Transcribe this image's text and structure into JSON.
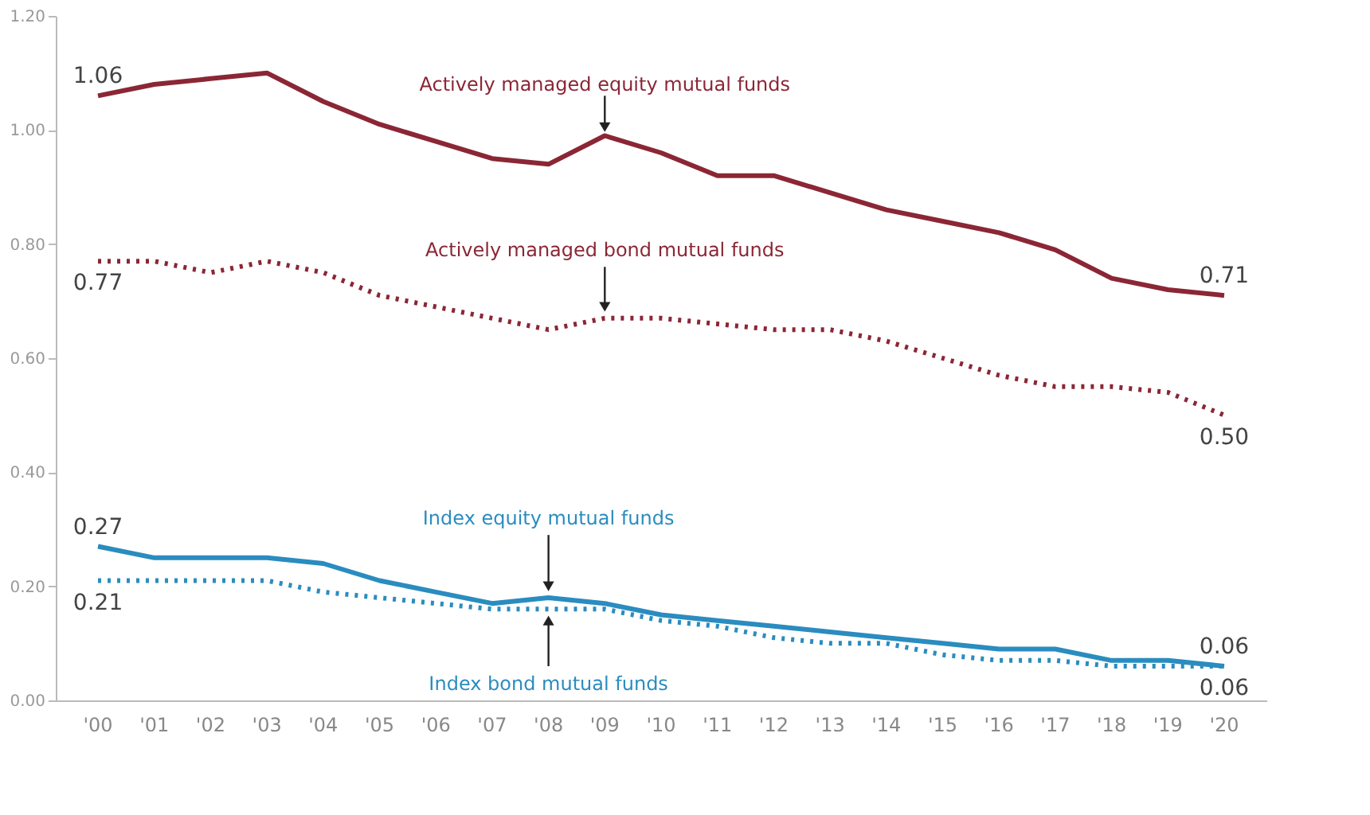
{
  "chart_data": {
    "type": "line",
    "categories": [
      "'00",
      "'01",
      "'02",
      "'03",
      "'04",
      "'05",
      "'06",
      "'07",
      "'08",
      "'09",
      "'10",
      "'11",
      "'12",
      "'13",
      "'14",
      "'15",
      "'16",
      "'17",
      "'18",
      "'19",
      "'20"
    ],
    "series": [
      {
        "name": "Actively managed equity mutual funds",
        "color": "#8b2635",
        "line_style": "solid",
        "values": [
          1.06,
          1.08,
          1.09,
          1.1,
          1.05,
          1.01,
          0.98,
          0.95,
          0.94,
          0.99,
          0.96,
          0.92,
          0.92,
          0.89,
          0.86,
          0.84,
          0.82,
          0.79,
          0.74,
          0.72,
          0.71
        ],
        "value_labels": [
          "1.06",
          null,
          null,
          null,
          null,
          null,
          null,
          null,
          null,
          null,
          null,
          null,
          null,
          null,
          null,
          null,
          null,
          null,
          null,
          null,
          "0.71"
        ]
      },
      {
        "name": "Actively managed bond mutual funds",
        "color": "#8b2635",
        "line_style": "dotted",
        "values": [
          0.77,
          0.77,
          0.75,
          0.77,
          0.75,
          0.71,
          0.69,
          0.67,
          0.65,
          0.67,
          0.67,
          0.66,
          0.65,
          0.65,
          0.63,
          0.6,
          0.57,
          0.55,
          0.55,
          0.54,
          0.5
        ],
        "value_labels": [
          "0.77",
          null,
          null,
          null,
          null,
          null,
          null,
          null,
          null,
          null,
          null,
          null,
          null,
          null,
          null,
          null,
          null,
          null,
          null,
          null,
          "0.50"
        ]
      },
      {
        "name": "Index equity mutual funds",
        "color": "#2a8cbf",
        "line_style": "solid",
        "values": [
          0.27,
          0.25,
          0.25,
          0.25,
          0.24,
          0.21,
          0.19,
          0.17,
          0.18,
          0.17,
          0.15,
          0.14,
          0.13,
          0.12,
          0.11,
          0.1,
          0.09,
          0.09,
          0.07,
          0.07,
          0.06
        ],
        "value_labels": [
          "0.27",
          null,
          null,
          null,
          null,
          null,
          null,
          null,
          null,
          null,
          null,
          null,
          null,
          null,
          null,
          null,
          null,
          null,
          null,
          null,
          "0.06"
        ]
      },
      {
        "name": "Index bond mutual funds",
        "color": "#2a8cbf",
        "line_style": "dotted",
        "values": [
          0.21,
          0.21,
          0.21,
          0.21,
          0.19,
          0.18,
          0.17,
          0.16,
          0.16,
          0.16,
          0.14,
          0.13,
          0.11,
          0.1,
          0.1,
          0.08,
          0.07,
          0.07,
          0.06,
          0.06,
          0.06
        ],
        "value_labels": [
          "0.21",
          null,
          null,
          null,
          null,
          null,
          null,
          null,
          null,
          null,
          null,
          null,
          null,
          null,
          null,
          null,
          null,
          null,
          null,
          null,
          "0.06"
        ]
      }
    ],
    "ylim": [
      0,
      1.2
    ],
    "yticks": [
      {
        "value": 0,
        "label": "0.00"
      },
      {
        "value": 0.2,
        "label": "0.20"
      },
      {
        "value": 0.4,
        "label": "0.40"
      },
      {
        "value": 0.6,
        "label": "0.60"
      },
      {
        "value": 0.8,
        "label": "0.80"
      },
      {
        "value": 1.0,
        "label": "1.00"
      },
      {
        "value": 1.2,
        "label": "1.20"
      }
    ],
    "grid": false
  }
}
